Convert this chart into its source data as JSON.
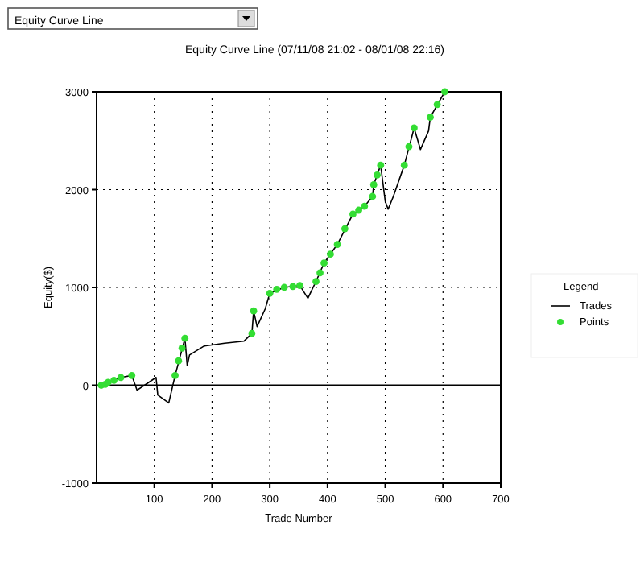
{
  "chart_data": {
    "type": "line",
    "title": "Equity Curve Line (07/11/08 21:02 - 08/01/08 22:16)",
    "xlabel": "Trade Number",
    "ylabel": "Equity($)",
    "legend_title": "Legend",
    "legend": "right",
    "grid": true,
    "annotations": [
      "Equity Curve Line"
    ],
    "xlim": [
      0,
      700
    ],
    "xticks": [
      100,
      200,
      300,
      400,
      500,
      600,
      700
    ],
    "ylim": [
      -1000,
      3000
    ],
    "yticks": [
      -1000,
      0,
      1000,
      2000,
      3000
    ],
    "series": [
      {
        "name": "Trades",
        "type": "line",
        "color": "#000000",
        "marker": "none",
        "x": [
          8,
          20,
          42,
          61,
          70,
          83,
          103,
          106,
          125,
          136,
          153,
          157,
          161,
          186,
          222,
          255,
          269,
          272,
          278,
          292,
          300,
          325,
          352,
          366,
          380,
          394,
          417,
          444,
          464,
          478,
          480,
          492,
          500,
          505,
          514,
          533,
          550,
          561,
          575,
          578,
          603
        ],
        "values": [
          0,
          30,
          80,
          100,
          -50,
          0,
          80,
          -100,
          -180,
          100,
          480,
          200,
          310,
          400,
          430,
          450,
          530,
          760,
          600,
          780,
          940,
          1000,
          1020,
          890,
          1060,
          1250,
          1440,
          1750,
          1830,
          1930,
          2050,
          2250,
          1880,
          1800,
          1930,
          2250,
          2630,
          2410,
          2600,
          2740,
          3000
        ]
      },
      {
        "name": "Points",
        "type": "scatter",
        "color": "#33dd33",
        "marker": "circle",
        "x": [
          8,
          15,
          20,
          30,
          42,
          61,
          136,
          142,
          148,
          153,
          269,
          272,
          300,
          312,
          325,
          340,
          352,
          380,
          387,
          394,
          405,
          417,
          430,
          444,
          454,
          464,
          478,
          480,
          486,
          492,
          533,
          541,
          550,
          578,
          590,
          603
        ],
        "values": [
          0,
          10,
          30,
          50,
          80,
          100,
          100,
          250,
          380,
          480,
          530,
          760,
          940,
          980,
          1000,
          1010,
          1020,
          1060,
          1150,
          1250,
          1340,
          1440,
          1600,
          1750,
          1790,
          1830,
          1930,
          2050,
          2150,
          2250,
          2250,
          2440,
          2630,
          2740,
          2870,
          3000
        ]
      }
    ]
  }
}
